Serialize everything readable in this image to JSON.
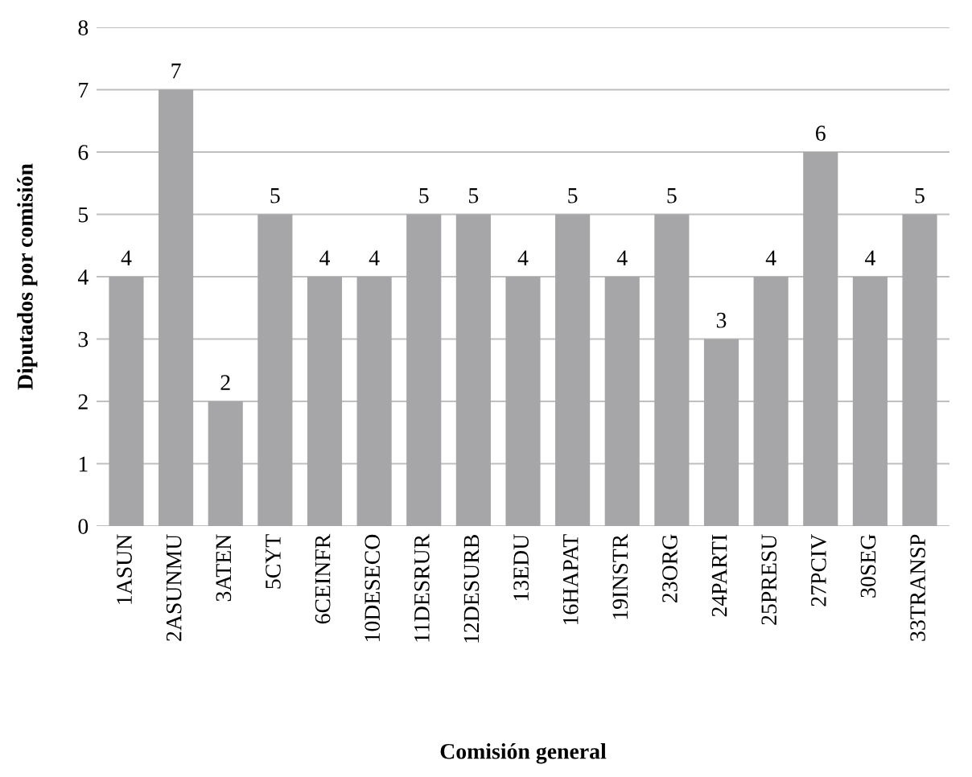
{
  "chart_data": {
    "type": "bar",
    "xlabel": "Comisión general",
    "ylabel": "Diputados por comisión",
    "categories": [
      "1ASUN",
      "2ASUNMU",
      "3ATEN",
      "5CYT",
      "6CEINFR",
      "10DESECO",
      "11DESRUR",
      "12DESURB",
      "13EDU",
      "16HAPAT",
      "19INSTR",
      "23ORG",
      "24PARTI",
      "25PRESU",
      "27PCIV",
      "30SEG",
      "33TRANSP"
    ],
    "values": [
      4,
      7,
      2,
      5,
      4,
      4,
      5,
      5,
      4,
      5,
      4,
      5,
      3,
      4,
      6,
      4,
      5
    ],
    "color": "#a6a6a8",
    "ylim": [
      0,
      8
    ],
    "yticks": [
      0,
      1,
      2,
      3,
      4,
      5,
      6,
      7,
      8
    ],
    "grid": "y",
    "data_labels": true,
    "legend": false
  }
}
